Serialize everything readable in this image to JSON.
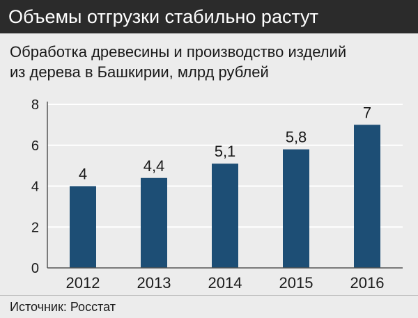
{
  "header": {
    "title": "Объемы отгрузки стабильно растут"
  },
  "subtitle": {
    "line1": "Обработка древесины и производство изделий",
    "line2": "из дерева в Башкирии, млрд рублей"
  },
  "source": "Источник: Росстат",
  "colors": {
    "bar": "#1d4e75",
    "header_bg": "#2b2b2b",
    "background": "#ececec",
    "grid": "#ffffff"
  },
  "chart_data": {
    "type": "bar",
    "categories": [
      "2012",
      "2013",
      "2014",
      "2015",
      "2016"
    ],
    "values": [
      4,
      4.4,
      5.1,
      5.8,
      7
    ],
    "value_labels": [
      "4",
      "4,4",
      "5,1",
      "5,8",
      "7"
    ],
    "ylim": [
      0,
      8
    ],
    "yticks": [
      0,
      2,
      4,
      6,
      8
    ],
    "grid": true,
    "xlabel": "",
    "ylabel": ""
  }
}
